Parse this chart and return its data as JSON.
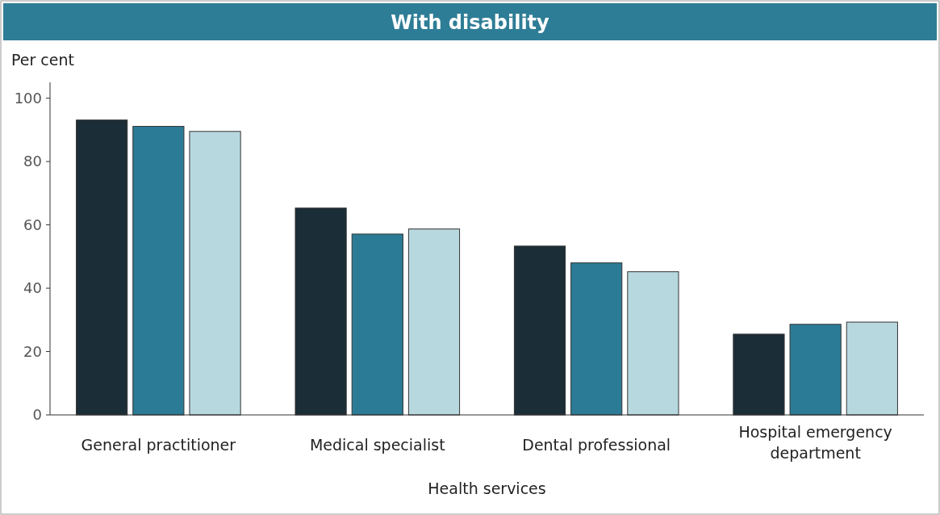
{
  "chart_data": {
    "type": "bar",
    "title": "With disability",
    "ylabel": "Per cent",
    "xlabel": "Health services",
    "categories": [
      "General practitioner",
      "Medical specialist",
      "Dental professional",
      "Hospital emergency department"
    ],
    "series": [
      {
        "color": "#1b2d36",
        "values": [
          93.1,
          65.3,
          53.3,
          25.5
        ]
      },
      {
        "color": "#2b7b96",
        "values": [
          91.1,
          57.1,
          48,
          28.6
        ]
      },
      {
        "color": "#b8d8e0",
        "values": [
          89.5,
          58.7,
          45.2,
          29.3
        ]
      }
    ],
    "ylim": [
      0,
      105
    ],
    "yticks": [
      0,
      20,
      40,
      60,
      80,
      100
    ],
    "grid": false
  }
}
